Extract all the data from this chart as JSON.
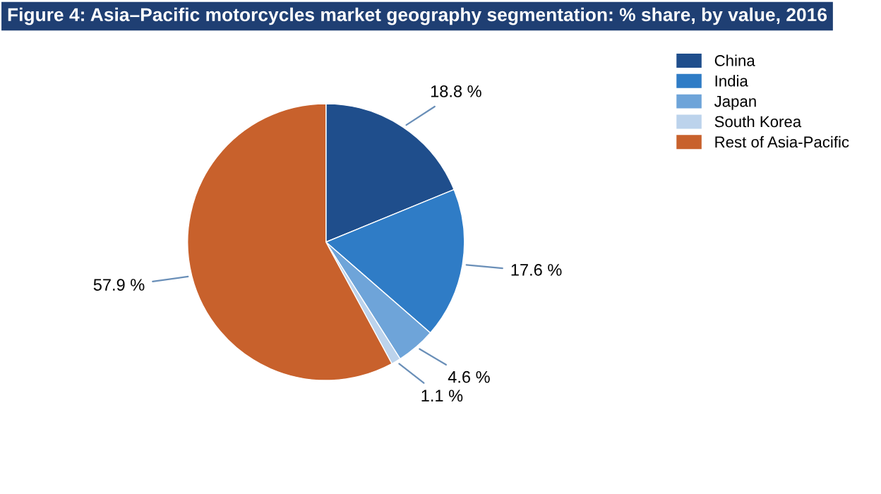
{
  "chart_data": {
    "type": "pie",
    "title": "Figure 4: Asia–Pacific motorcycles market geography segmentation: % share, by value, 2016",
    "categories": [
      "China",
      "India",
      "Japan",
      "South Korea",
      "Rest of Asia-Pacific"
    ],
    "values": [
      18.8,
      17.6,
      4.6,
      1.1,
      57.9
    ],
    "colors": [
      "#1f4e8c",
      "#2f7cc6",
      "#6ea4d9",
      "#bcd3ec",
      "#c8612c"
    ],
    "value_labels": [
      "18.8 %",
      "17.6 %",
      "4.6 %",
      "1.1 %",
      "57.9 %"
    ],
    "legend": "top right"
  }
}
